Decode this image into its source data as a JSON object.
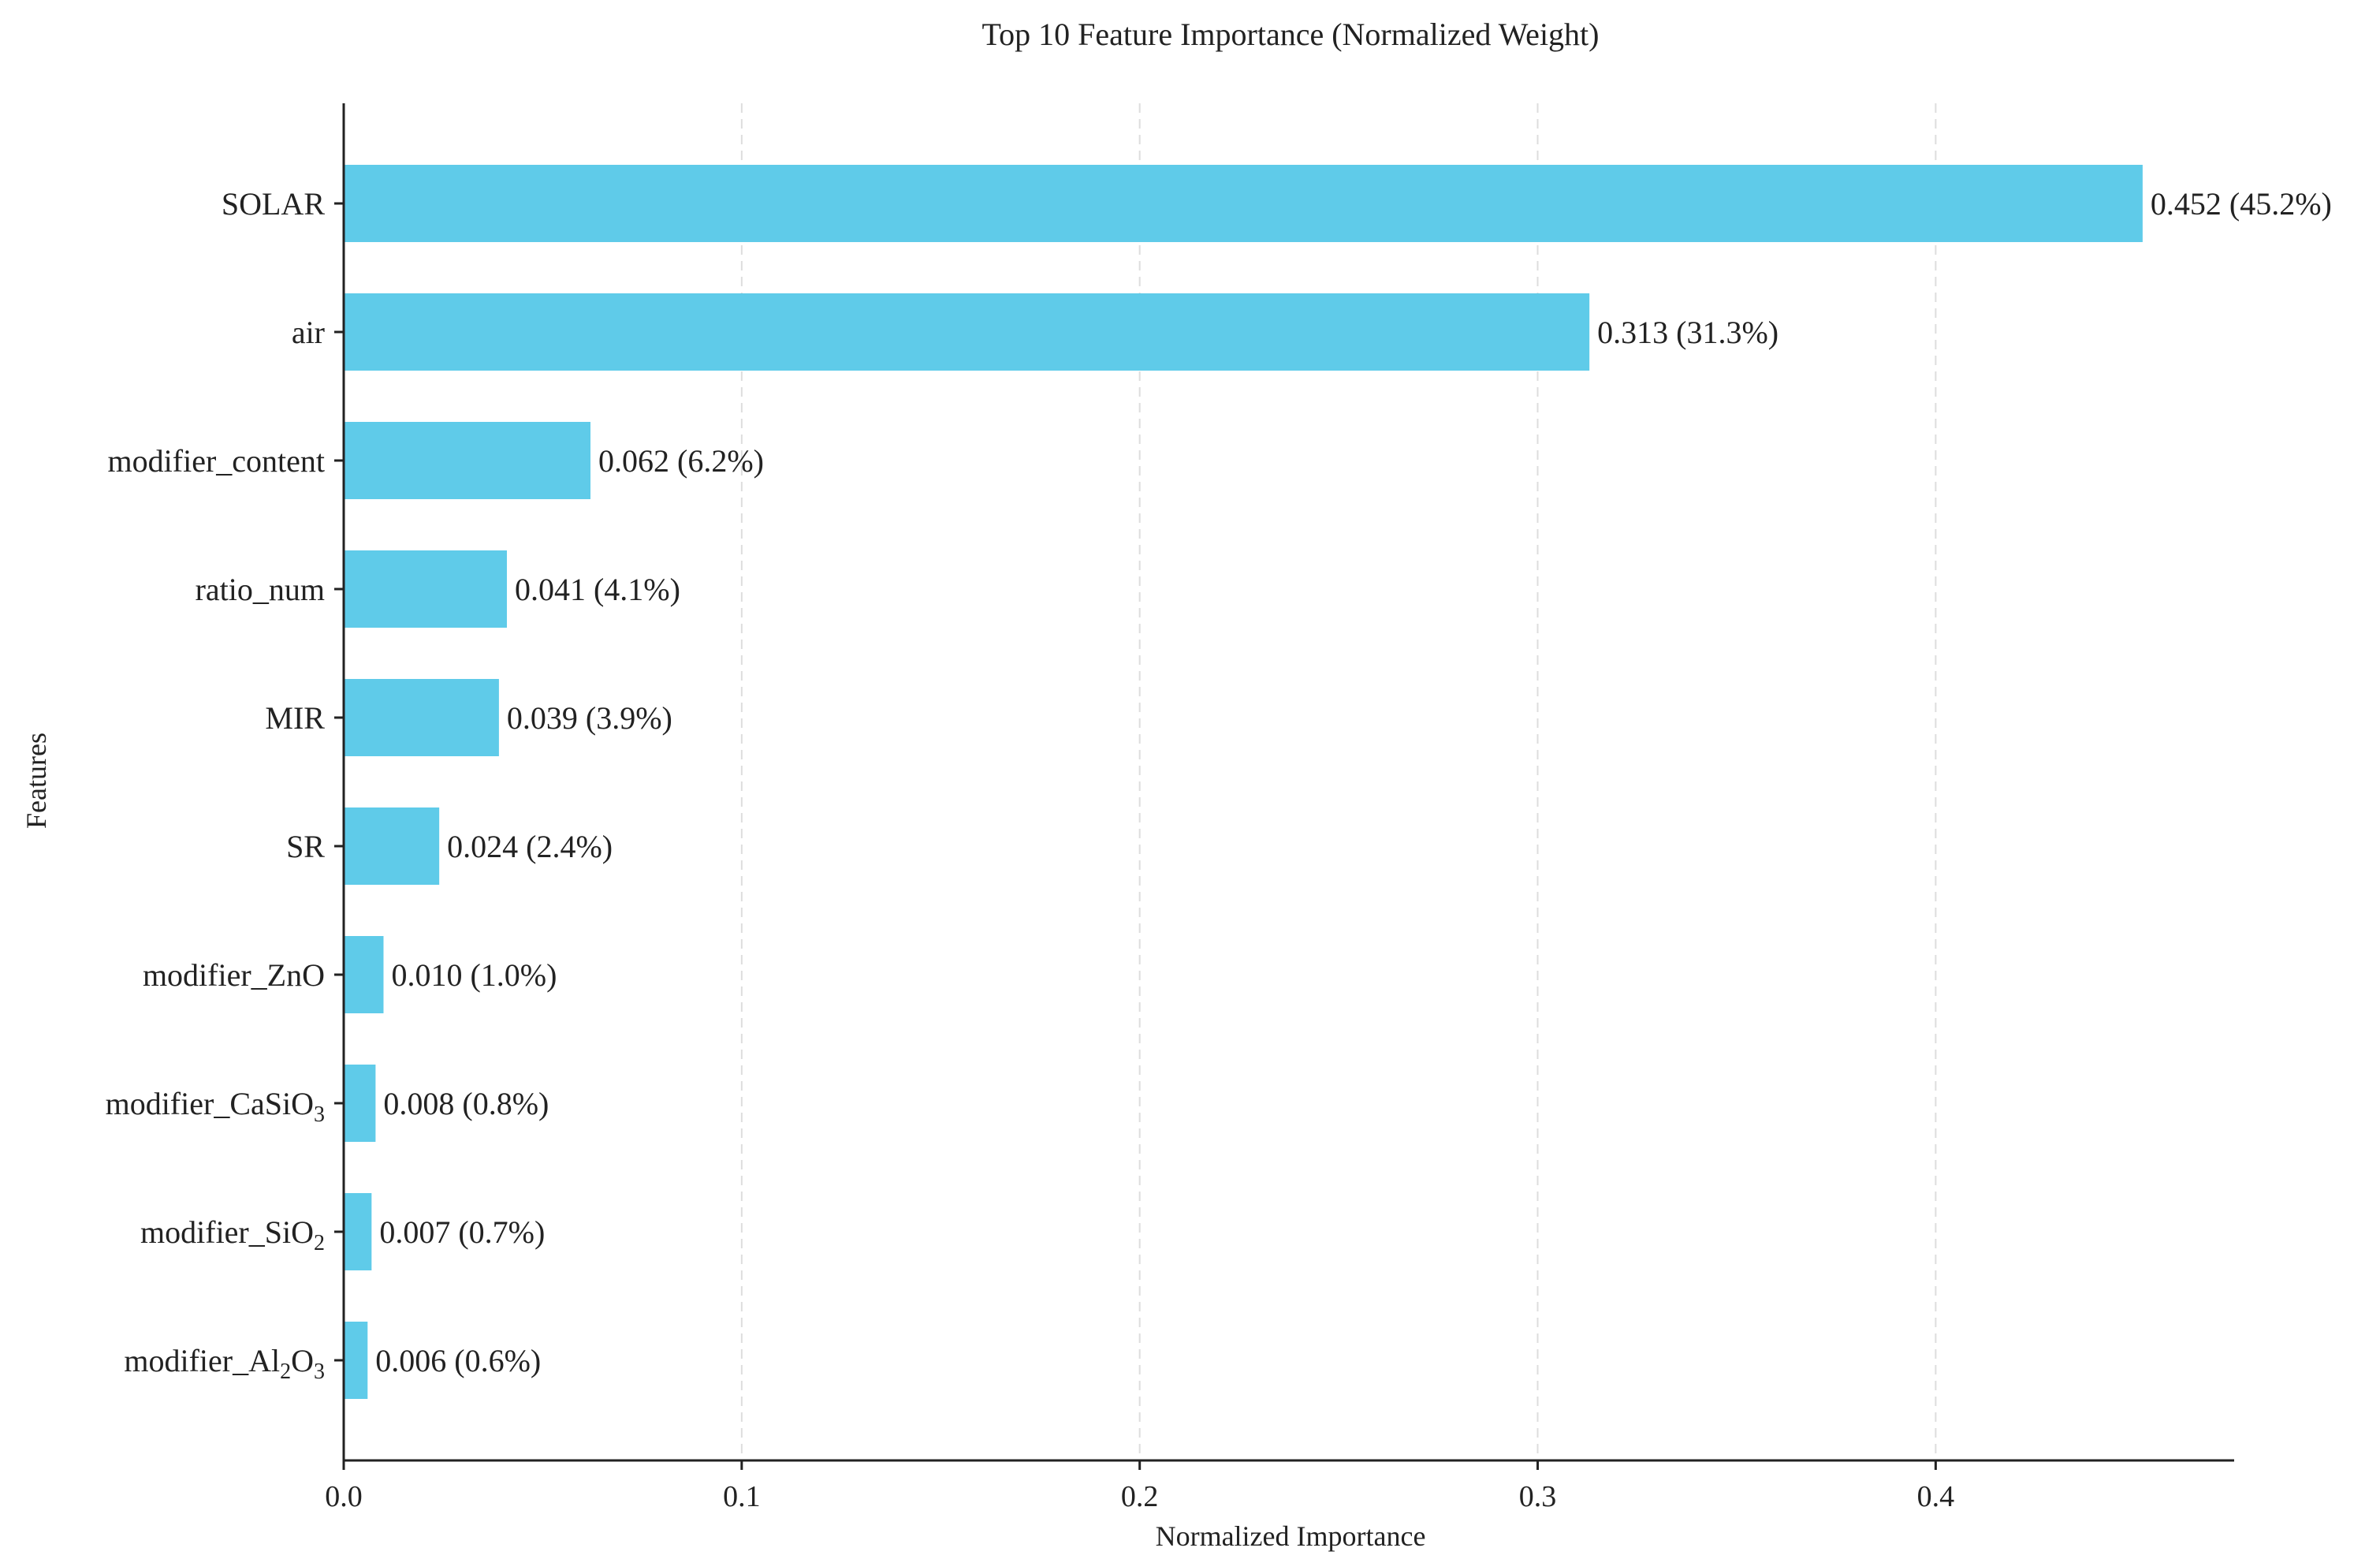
{
  "chart_data": {
    "type": "bar",
    "orientation": "horizontal",
    "title": "Top 10 Feature Importance (Normalized Weight)",
    "xlabel": "Normalized Importance",
    "ylabel": "Features",
    "xlim": [
      0,
      0.475
    ],
    "xticks": [
      "0.0",
      "0.1",
      "0.2",
      "0.3",
      "0.4"
    ],
    "xtick_values": [
      0,
      0.1,
      0.2,
      0.3,
      0.4
    ],
    "grid": "x-dashed",
    "bar_color": "#5fcbe9",
    "categories": [
      {
        "main": "SOLAR",
        "subs": []
      },
      {
        "main": "air",
        "subs": []
      },
      {
        "main": "modifier_content",
        "subs": []
      },
      {
        "main": "ratio_num",
        "subs": []
      },
      {
        "main": "MIR",
        "subs": []
      },
      {
        "main": "SR",
        "subs": []
      },
      {
        "main": "modifier_ZnO",
        "subs": []
      },
      {
        "main": "modifier_CaSiO",
        "subs": [
          "3"
        ]
      },
      {
        "main": "modifier_SiO",
        "subs": [
          "2"
        ]
      },
      {
        "main": "modifier_Al",
        "subs": [
          "2",
          "O",
          "3"
        ]
      }
    ],
    "values": [
      0.452,
      0.313,
      0.062,
      0.041,
      0.039,
      0.024,
      0.01,
      0.008,
      0.007,
      0.006
    ],
    "data_labels": [
      "0.452 (45.2%)",
      "0.313 (31.3%)",
      "0.062 (6.2%)",
      "0.041 (4.1%)",
      "0.039 (3.9%)",
      "0.024 (2.4%)",
      "0.010 (1.0%)",
      "0.008 (0.8%)",
      "0.007 (0.7%)",
      "0.006 (0.6%)"
    ]
  }
}
